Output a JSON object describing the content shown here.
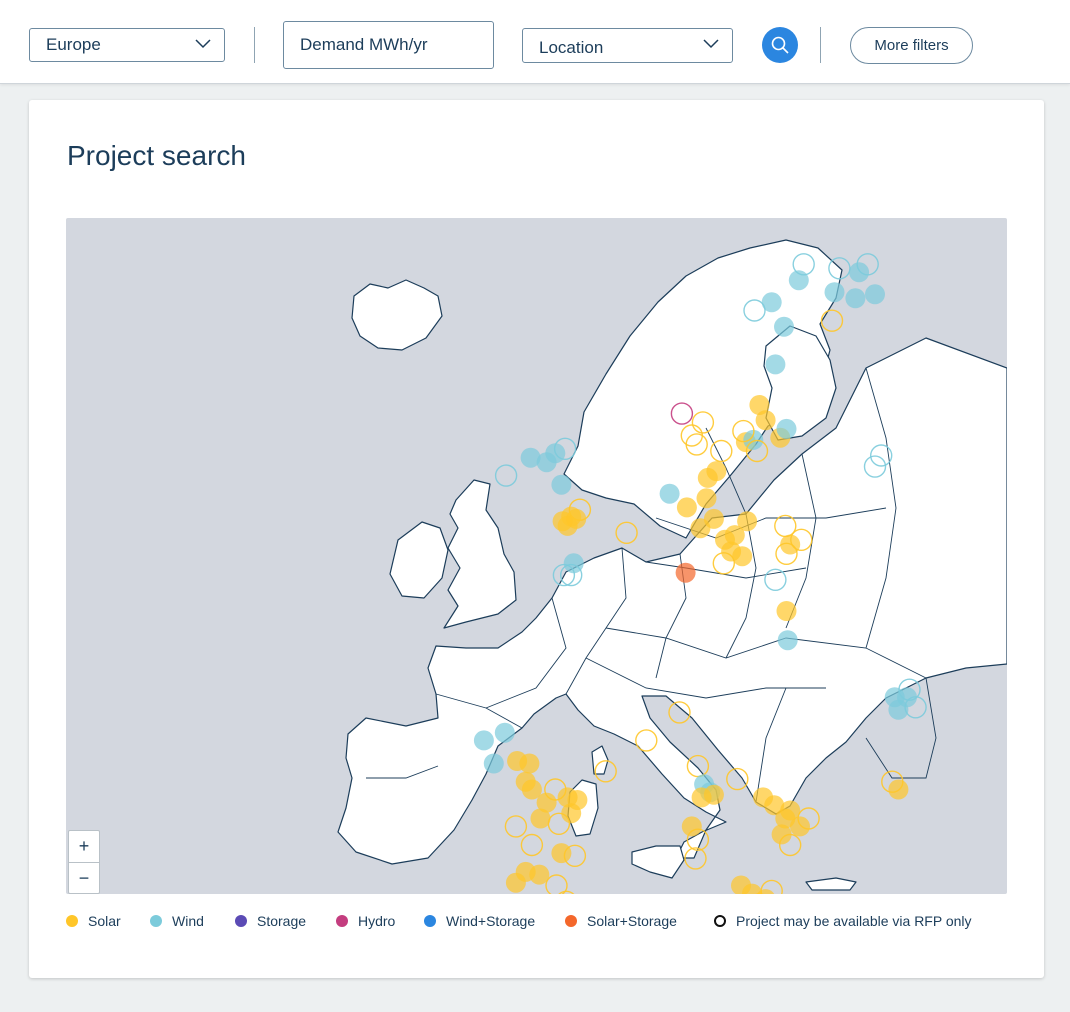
{
  "filters": {
    "region": "Europe",
    "demand_value": "Demand MWh/yr",
    "location": "Location",
    "more_filters_label": "More filters"
  },
  "icons": {
    "search": "search-icon",
    "chevron": "chevron-down-icon",
    "zoom_in": "+",
    "zoom_out": "−"
  },
  "page": {
    "title": "Project search"
  },
  "colors": {
    "solar": "#ffc629",
    "wind": "#7ccbdb",
    "storage": "#5b4bb5",
    "hydro": "#c43d7f",
    "wind_storage": "#2b86e0",
    "solar_storage": "#f4672b",
    "rfp_only": "#111111",
    "map_water": "#d3d7df",
    "map_land": "#ffffff",
    "map_border": "#1c3d5a"
  },
  "legend": [
    {
      "label": "Solar",
      "type": "solar"
    },
    {
      "label": "Wind",
      "type": "wind"
    },
    {
      "label": "Storage",
      "type": "storage"
    },
    {
      "label": "Hydro",
      "type": "hydro"
    },
    {
      "label": "Wind+Storage",
      "type": "wind_storage"
    },
    {
      "label": "Solar+Storage",
      "type": "solar_storage"
    },
    {
      "label": "Project may be available via RFP only",
      "type": "rfp_only"
    }
  ],
  "projects": [
    {
      "lat": 52.6,
      "lon": -1.2,
      "type": "solar",
      "filled": true
    },
    {
      "lat": 52.4,
      "lon": -1.9,
      "type": "solar",
      "filled": true
    },
    {
      "lat": 52.5,
      "lon": -0.8,
      "type": "solar",
      "filled": true
    },
    {
      "lat": 52.2,
      "lon": -1.5,
      "type": "solar",
      "filled": true
    },
    {
      "lat": 52.9,
      "lon": -0.5,
      "type": "solar",
      "filled": false
    },
    {
      "lat": 54.0,
      "lon": -2.0,
      "type": "wind",
      "filled": true
    },
    {
      "lat": 55.0,
      "lon": -3.2,
      "type": "wind",
      "filled": true
    },
    {
      "lat": 55.4,
      "lon": -2.5,
      "type": "wind",
      "filled": true
    },
    {
      "lat": 55.2,
      "lon": -4.5,
      "type": "wind",
      "filled": true
    },
    {
      "lat": 55.6,
      "lon": -1.7,
      "type": "wind",
      "filled": false
    },
    {
      "lat": 54.4,
      "lon": -6.5,
      "type": "wind",
      "filled": false
    },
    {
      "lat": 50.6,
      "lon": -1.0,
      "type": "wind",
      "filled": true
    },
    {
      "lat": 50.1,
      "lon": -1.8,
      "type": "wind",
      "filled": false
    },
    {
      "lat": 50.1,
      "lon": -1.2,
      "type": "wind",
      "filled": false
    },
    {
      "lat": 53.6,
      "lon": 6.8,
      "type": "wind",
      "filled": true
    },
    {
      "lat": 51.9,
      "lon": 3.3,
      "type": "solar",
      "filled": false
    },
    {
      "lat": 53.0,
      "lon": 8.2,
      "type": "solar",
      "filled": true
    },
    {
      "lat": 53.4,
      "lon": 9.8,
      "type": "solar",
      "filled": true
    },
    {
      "lat": 54.3,
      "lon": 9.9,
      "type": "solar",
      "filled": true
    },
    {
      "lat": 54.6,
      "lon": 10.6,
      "type": "solar",
      "filled": true
    },
    {
      "lat": 55.8,
      "lon": 9.0,
      "type": "solar",
      "filled": false
    },
    {
      "lat": 56.2,
      "lon": 8.6,
      "type": "solar",
      "filled": false
    },
    {
      "lat": 56.8,
      "lon": 9.5,
      "type": "solar",
      "filled": false
    },
    {
      "lat": 55.5,
      "lon": 11.0,
      "type": "solar",
      "filled": false
    },
    {
      "lat": 52.1,
      "lon": 9.3,
      "type": "solar",
      "filled": true
    },
    {
      "lat": 52.5,
      "lon": 10.4,
      "type": "solar",
      "filled": true
    },
    {
      "lat": 51.6,
      "lon": 11.3,
      "type": "solar",
      "filled": true
    },
    {
      "lat": 51.8,
      "lon": 12.1,
      "type": "solar",
      "filled": true
    },
    {
      "lat": 51.1,
      "lon": 11.8,
      "type": "solar",
      "filled": true
    },
    {
      "lat": 50.6,
      "lon": 11.2,
      "type": "solar",
      "filled": false
    },
    {
      "lat": 50.9,
      "lon": 12.7,
      "type": "solar",
      "filled": true
    },
    {
      "lat": 52.4,
      "lon": 13.1,
      "type": "solar",
      "filled": true
    },
    {
      "lat": 52.2,
      "lon": 16.2,
      "type": "solar",
      "filled": false
    },
    {
      "lat": 51.6,
      "lon": 17.5,
      "type": "solar",
      "filled": false
    },
    {
      "lat": 51.4,
      "lon": 16.6,
      "type": "solar",
      "filled": true
    },
    {
      "lat": 51.0,
      "lon": 16.3,
      "type": "solar",
      "filled": false
    },
    {
      "lat": 49.9,
      "lon": 15.4,
      "type": "wind",
      "filled": false
    },
    {
      "lat": 48.6,
      "lon": 16.3,
      "type": "solar",
      "filled": true
    },
    {
      "lat": 47.4,
      "lon": 16.4,
      "type": "wind",
      "filled": true
    },
    {
      "lat": 50.2,
      "lon": 8.1,
      "type": "solar_storage",
      "filled": true
    },
    {
      "lat": 57.6,
      "lon": 14.1,
      "type": "solar",
      "filled": true
    },
    {
      "lat": 56.9,
      "lon": 14.6,
      "type": "solar",
      "filled": true
    },
    {
      "lat": 56.1,
      "lon": 15.8,
      "type": "solar",
      "filled": true
    },
    {
      "lat": 56.5,
      "lon": 16.3,
      "type": "wind",
      "filled": true
    },
    {
      "lat": 55.9,
      "lon": 13.0,
      "type": "solar",
      "filled": true
    },
    {
      "lat": 56.0,
      "lon": 13.6,
      "type": "wind",
      "filled": true
    },
    {
      "lat": 55.5,
      "lon": 13.9,
      "type": "solar",
      "filled": false
    },
    {
      "lat": 56.4,
      "lon": 12.8,
      "type": "solar",
      "filled": false
    },
    {
      "lat": 62.5,
      "lon": 15.1,
      "type": "wind",
      "filled": true
    },
    {
      "lat": 61.3,
      "lon": 16.1,
      "type": "wind",
      "filled": true
    },
    {
      "lat": 62.1,
      "lon": 13.7,
      "type": "wind",
      "filled": false
    },
    {
      "lat": 63.6,
      "lon": 17.3,
      "type": "wind",
      "filled": true
    },
    {
      "lat": 64.4,
      "lon": 17.7,
      "type": "wind",
      "filled": false
    },
    {
      "lat": 59.5,
      "lon": 15.4,
      "type": "wind",
      "filled": true
    },
    {
      "lat": 63.0,
      "lon": 20.2,
      "type": "wind",
      "filled": true
    },
    {
      "lat": 62.7,
      "lon": 21.9,
      "type": "wind",
      "filled": true
    },
    {
      "lat": 62.9,
      "lon": 23.5,
      "type": "wind",
      "filled": true
    },
    {
      "lat": 64.0,
      "lon": 22.2,
      "type": "wind",
      "filled": true
    },
    {
      "lat": 64.4,
      "lon": 22.9,
      "type": "wind",
      "filled": false
    },
    {
      "lat": 64.2,
      "lon": 20.6,
      "type": "wind",
      "filled": false
    },
    {
      "lat": 61.6,
      "lon": 20.0,
      "type": "solar",
      "filled": false
    },
    {
      "lat": 55.3,
      "lon": 24.0,
      "type": "wind",
      "filled": false
    },
    {
      "lat": 54.8,
      "lon": 23.5,
      "type": "wind",
      "filled": false
    },
    {
      "lat": 57.2,
      "lon": 7.8,
      "type": "hydro",
      "filled": false
    },
    {
      "lat": 43.4,
      "lon": -8.3,
      "type": "wind",
      "filled": true
    },
    {
      "lat": 43.7,
      "lon": -6.6,
      "type": "wind",
      "filled": true
    },
    {
      "lat": 42.5,
      "lon": -7.5,
      "type": "wind",
      "filled": true
    },
    {
      "lat": 42.6,
      "lon": -5.6,
      "type": "solar",
      "filled": true
    },
    {
      "lat": 42.5,
      "lon": -4.6,
      "type": "solar",
      "filled": true
    },
    {
      "lat": 41.8,
      "lon": -4.9,
      "type": "solar",
      "filled": true
    },
    {
      "lat": 41.5,
      "lon": -4.4,
      "type": "solar",
      "filled": true
    },
    {
      "lat": 41.5,
      "lon": -2.5,
      "type": "solar",
      "filled": false
    },
    {
      "lat": 41.0,
      "lon": -3.2,
      "type": "solar",
      "filled": true
    },
    {
      "lat": 41.2,
      "lon": -1.5,
      "type": "solar",
      "filled": true
    },
    {
      "lat": 41.1,
      "lon": -0.7,
      "type": "solar",
      "filled": true
    },
    {
      "lat": 40.6,
      "lon": -1.2,
      "type": "solar",
      "filled": true
    },
    {
      "lat": 40.2,
      "lon": -2.2,
      "type": "solar",
      "filled": false
    },
    {
      "lat": 40.4,
      "lon": -3.7,
      "type": "solar",
      "filled": true
    },
    {
      "lat": 40.1,
      "lon": -5.7,
      "type": "solar",
      "filled": false
    },
    {
      "lat": 39.4,
      "lon": -4.4,
      "type": "solar",
      "filled": false
    },
    {
      "lat": 39.1,
      "lon": -2.0,
      "type": "solar",
      "filled": true
    },
    {
      "lat": 39.0,
      "lon": -0.9,
      "type": "solar",
      "filled": false
    },
    {
      "lat": 38.4,
      "lon": -4.9,
      "type": "solar",
      "filled": true
    },
    {
      "lat": 38.3,
      "lon": -3.8,
      "type": "solar",
      "filled": true
    },
    {
      "lat": 38.0,
      "lon": -5.7,
      "type": "solar",
      "filled": true
    },
    {
      "lat": 37.9,
      "lon": -2.4,
      "type": "solar",
      "filled": false
    },
    {
      "lat": 37.3,
      "lon": -1.6,
      "type": "solar",
      "filled": false
    },
    {
      "lat": 37.0,
      "lon": -5.5,
      "type": "solar",
      "filled": true
    },
    {
      "lat": 36.5,
      "lon": -4.0,
      "type": "solar",
      "filled": true
    },
    {
      "lat": 36.3,
      "lon": -2.3,
      "type": "solar",
      "filled": false
    },
    {
      "lat": 36.0,
      "lon": -5.8,
      "type": "solar",
      "filled": false
    },
    {
      "lat": 42.2,
      "lon": 1.6,
      "type": "solar",
      "filled": false
    },
    {
      "lat": 43.4,
      "lon": 4.9,
      "type": "solar",
      "filled": false
    },
    {
      "lat": 44.5,
      "lon": 7.6,
      "type": "solar",
      "filled": false
    },
    {
      "lat": 42.4,
      "lon": 9.1,
      "type": "solar",
      "filled": false
    },
    {
      "lat": 41.7,
      "lon": 9.6,
      "type": "wind",
      "filled": true
    },
    {
      "lat": 41.4,
      "lon": 10.1,
      "type": "wind",
      "filled": true
    },
    {
      "lat": 41.2,
      "lon": 9.4,
      "type": "solar",
      "filled": true
    },
    {
      "lat": 41.3,
      "lon": 10.4,
      "type": "solar",
      "filled": true
    },
    {
      "lat": 40.1,
      "lon": 8.6,
      "type": "solar",
      "filled": true
    },
    {
      "lat": 39.6,
      "lon": 9.1,
      "type": "solar",
      "filled": false
    },
    {
      "lat": 38.9,
      "lon": 8.9,
      "type": "solar",
      "filled": false
    },
    {
      "lat": 41.9,
      "lon": 12.3,
      "type": "solar",
      "filled": false
    },
    {
      "lat": 41.2,
      "lon": 14.4,
      "type": "solar",
      "filled": true
    },
    {
      "lat": 40.9,
      "lon": 15.3,
      "type": "solar",
      "filled": true
    },
    {
      "lat": 40.7,
      "lon": 16.6,
      "type": "solar",
      "filled": true
    },
    {
      "lat": 40.4,
      "lon": 16.2,
      "type": "solar",
      "filled": true
    },
    {
      "lat": 40.1,
      "lon": 17.4,
      "type": "solar",
      "filled": true
    },
    {
      "lat": 39.8,
      "lon": 15.9,
      "type": "solar",
      "filled": true
    },
    {
      "lat": 40.4,
      "lon": 18.1,
      "type": "solar",
      "filled": false
    },
    {
      "lat": 39.4,
      "lon": 16.6,
      "type": "solar",
      "filled": false
    },
    {
      "lat": 37.9,
      "lon": 12.6,
      "type": "solar",
      "filled": true
    },
    {
      "lat": 37.6,
      "lon": 13.5,
      "type": "solar",
      "filled": true
    },
    {
      "lat": 37.4,
      "lon": 14.6,
      "type": "solar",
      "filled": true
    },
    {
      "lat": 37.2,
      "lon": 14.1,
      "type": "solar",
      "filled": false
    },
    {
      "lat": 37.7,
      "lon": 15.1,
      "type": "solar",
      "filled": false
    },
    {
      "lat": 36.8,
      "lon": 14.4,
      "type": "solar",
      "filled": false
    },
    {
      "lat": 45.1,
      "lon": 25.1,
      "type": "wind",
      "filled": true
    },
    {
      "lat": 45.1,
      "lon": 26.1,
      "type": "wind",
      "filled": true
    },
    {
      "lat": 44.6,
      "lon": 25.4,
      "type": "wind",
      "filled": true
    },
    {
      "lat": 44.7,
      "lon": 26.8,
      "type": "wind",
      "filled": false
    },
    {
      "lat": 45.4,
      "lon": 26.3,
      "type": "wind",
      "filled": false
    },
    {
      "lat": 41.8,
      "lon": 24.9,
      "type": "solar",
      "filled": false
    },
    {
      "lat": 41.5,
      "lon": 25.4,
      "type": "solar",
      "filled": true
    }
  ]
}
